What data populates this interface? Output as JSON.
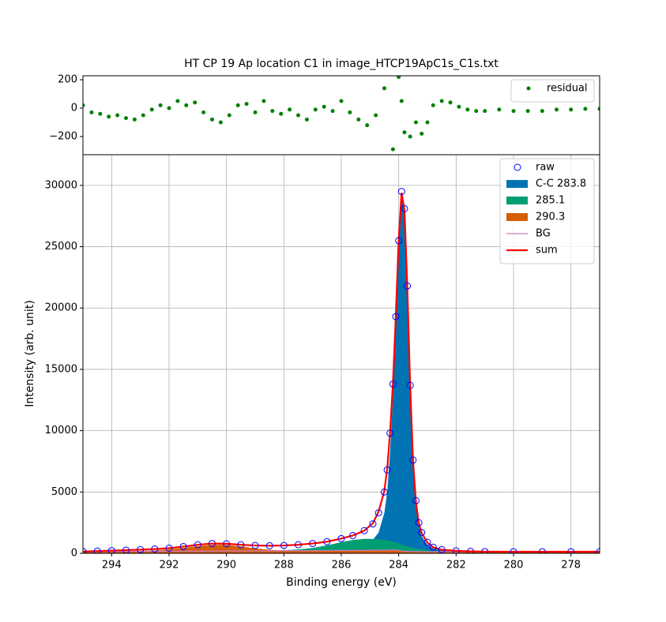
{
  "chart_data": [
    {
      "type": "scatter",
      "title": "HT CP 19 Ap location C1 in image_HTCP19ApC1s_C1s.txt",
      "x": [
        295,
        294.7,
        294.4,
        294.1,
        293.8,
        293.5,
        293.2,
        292.9,
        292.6,
        292.3,
        292,
        291.7,
        291.4,
        291.1,
        290.8,
        290.5,
        290.2,
        289.9,
        289.6,
        289.3,
        289,
        288.7,
        288.4,
        288.1,
        287.8,
        287.5,
        287.2,
        286.9,
        286.6,
        286.3,
        286,
        285.7,
        285.4,
        285.1,
        284.8,
        284.5,
        284.2,
        284.0,
        283.9,
        283.8,
        283.6,
        283.4,
        283.2,
        283.0,
        282.8,
        282.5,
        282.2,
        281.9,
        281.6,
        281.3,
        281,
        280.5,
        280,
        279.5,
        279,
        278.5,
        278,
        277.5,
        277
      ],
      "series": [
        {
          "name": "residual",
          "color": "#008000",
          "values": [
            20,
            -30,
            -40,
            -60,
            -50,
            -70,
            -80,
            -50,
            -10,
            20,
            0,
            50,
            20,
            40,
            -30,
            -80,
            -100,
            -50,
            20,
            30,
            -30,
            50,
            -20,
            -40,
            -10,
            -50,
            -80,
            -10,
            10,
            -20,
            50,
            -30,
            -80,
            -120,
            -50,
            140,
            -290,
            220,
            50,
            -170,
            -200,
            -100,
            -180,
            -100,
            20,
            50,
            40,
            10,
            -10,
            -20,
            -20,
            -10,
            -20,
            -20,
            -20,
            -10,
            -10,
            -5,
            -5
          ]
        }
      ],
      "xlim": [
        295,
        277
      ],
      "ylim": [
        -328,
        228
      ],
      "yticks": [
        {
          "value": -200,
          "label": "−200"
        },
        0,
        200
      ],
      "legend": "upper right"
    },
    {
      "type": "line",
      "xlabel": "Binding energy (eV)",
      "ylabel": "Intensity (arb. unit)",
      "x": [
        295,
        294.5,
        294,
        293.5,
        293,
        292.5,
        292,
        291.5,
        291,
        290.5,
        290,
        289.5,
        289,
        288.5,
        288,
        287.5,
        287,
        286.5,
        286,
        285.6,
        285.2,
        284.9,
        284.7,
        284.5,
        284.4,
        284.3,
        284.2,
        284.1,
        284.0,
        283.9,
        283.8,
        283.7,
        283.6,
        283.5,
        283.4,
        283.3,
        283.2,
        283.0,
        282.8,
        282.5,
        282,
        281.5,
        281,
        280,
        279,
        278,
        277
      ],
      "series": [
        {
          "name": "raw",
          "kind": "markers",
          "color": "#0000ff",
          "values": [
            150,
            180,
            220,
            260,
            300,
            350,
            420,
            550,
            700,
            800,
            780,
            700,
            640,
            620,
            640,
            700,
            800,
            950,
            1200,
            1450,
            1850,
            2400,
            3300,
            5000,
            6800,
            9800,
            13800,
            19300,
            25500,
            29500,
            28100,
            21800,
            13700,
            7600,
            4300,
            2500,
            1700,
            900,
            500,
            300,
            200,
            160,
            140,
            130,
            130,
            130,
            130
          ]
        },
        {
          "name": "C-C 283.8",
          "kind": "area",
          "color": "#0173b2",
          "values": [
            150,
            156,
            162,
            168,
            175,
            182,
            190,
            198,
            206,
            214,
            222,
            230,
            238,
            248,
            260,
            290,
            330,
            380,
            460,
            560,
            750,
            1100,
            1700,
            3300,
            5000,
            8300,
            12800,
            18500,
            25000,
            29300,
            27900,
            21500,
            13300,
            7200,
            3900,
            2200,
            1400,
            700,
            400,
            230,
            160,
            140,
            135,
            130,
            130,
            130,
            130
          ]
        },
        {
          "name": "285.1",
          "kind": "area",
          "color": "#029e73",
          "values": [
            140,
            145,
            150,
            155,
            160,
            165,
            170,
            175,
            180,
            185,
            190,
            195,
            202,
            212,
            240,
            310,
            435,
            650,
            910,
            1090,
            1185,
            1175,
            1140,
            1075,
            1038,
            992,
            946,
            890,
            800,
            710,
            635,
            560,
            500,
            440,
            390,
            347,
            312,
            257,
            217,
            177,
            140,
            135,
            132,
            130,
            130,
            130,
            130
          ]
        },
        {
          "name": "290.3",
          "kind": "area",
          "color": "#d55e00",
          "values": [
            140,
            145,
            152,
            165,
            190,
            240,
            320,
            450,
            590,
            700,
            680,
            560,
            410,
            290,
            240,
            222,
            221,
            225,
            230,
            235,
            240,
            245,
            250,
            255,
            258,
            262,
            266,
            270,
            230,
            200,
            180,
            160,
            150,
            140,
            135,
            132,
            130,
            130,
            130,
            130,
            130,
            130,
            130,
            130,
            130,
            130,
            130
          ]
        },
        {
          "name": "BG",
          "kind": "line",
          "color": "#cc78bc",
          "values": [
            140,
            145,
            150,
            155,
            160,
            165,
            170,
            175,
            180,
            185,
            190,
            195,
            200,
            205,
            210,
            215,
            220,
            225,
            230,
            235,
            240,
            245,
            250,
            255,
            258,
            262,
            266,
            270,
            230,
            200,
            180,
            160,
            150,
            140,
            135,
            132,
            130,
            130,
            130,
            130,
            130,
            130,
            130,
            130,
            130,
            130,
            130
          ]
        },
        {
          "name": "sum",
          "kind": "line",
          "color": "#ff0000",
          "values": [
            150,
            180,
            220,
            260,
            300,
            350,
            420,
            550,
            700,
            800,
            780,
            700,
            640,
            620,
            640,
            700,
            800,
            950,
            1200,
            1450,
            1850,
            2450,
            3400,
            5100,
            6900,
            9900,
            13900,
            19400,
            25600,
            29400,
            28000,
            21700,
            13600,
            7500,
            4200,
            2450,
            1650,
            880,
            490,
            290,
            200,
            160,
            140,
            130,
            130,
            130,
            130
          ]
        }
      ],
      "xlim": [
        295,
        277
      ],
      "ylim": [
        0,
        32500
      ],
      "xticks": [
        294,
        292,
        290,
        288,
        286,
        284,
        282,
        280,
        278
      ],
      "yticks": [
        0,
        5000,
        10000,
        15000,
        20000,
        25000,
        30000
      ],
      "grid": true,
      "legend": "upper right"
    }
  ]
}
